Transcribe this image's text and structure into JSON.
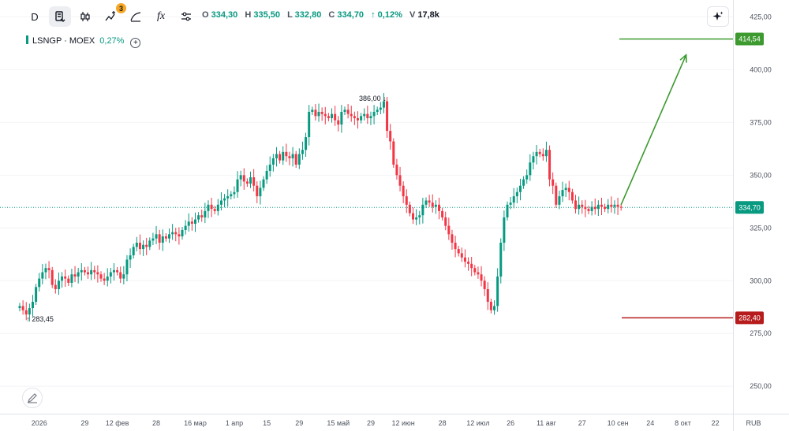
{
  "toolbar": {
    "interval_label": "D",
    "indicators_badge": "3",
    "fx_label": "fx",
    "ohlc": {
      "o_label": "O",
      "o": "334,30",
      "h_label": "H",
      "h": "335,50",
      "l_label": "L",
      "l": "332,80",
      "c_label": "C",
      "c": "334,70",
      "change": "↑ 0,12%",
      "v_label": "V",
      "v": "17,8k"
    }
  },
  "legend": {
    "symbol": "LSNGP · MOEX",
    "change": "0,27%"
  },
  "colors": {
    "up": "#089981",
    "down": "#f23645",
    "target": "#3c9a2f",
    "stop": "#b71c1c",
    "price_line": "#089981"
  },
  "chart_data": {
    "type": "candlestick",
    "y_axis": {
      "min": 237,
      "max": 433,
      "ticks": [
        250,
        275,
        300,
        325,
        350,
        375,
        400,
        425
      ],
      "tick_labels": [
        "250,00",
        "275,00",
        "300,00",
        "325,00",
        "350,00",
        "375,00",
        "400,00",
        "425,00"
      ],
      "currency": "RUB"
    },
    "x_axis": {
      "labels": [
        {
          "text": "2026",
          "i": 6
        },
        {
          "text": "29",
          "i": 20
        },
        {
          "text": "12 фев",
          "i": 30
        },
        {
          "text": "28",
          "i": 42
        },
        {
          "text": "16 мар",
          "i": 54
        },
        {
          "text": "1 апр",
          "i": 66
        },
        {
          "text": "15",
          "i": 76
        },
        {
          "text": "29",
          "i": 86
        },
        {
          "text": "15 май",
          "i": 98
        },
        {
          "text": "29",
          "i": 108
        },
        {
          "text": "12 июн",
          "i": 118
        },
        {
          "text": "28",
          "i": 130
        },
        {
          "text": "12 июл",
          "i": 141
        },
        {
          "text": "26",
          "i": 151
        },
        {
          "text": "11 авг",
          "i": 162
        },
        {
          "text": "27",
          "i": 173
        },
        {
          "text": "10 сен",
          "i": 184
        },
        {
          "text": "24",
          "i": 194
        },
        {
          "text": "8 окт",
          "i": 204
        },
        {
          "text": "22",
          "i": 214
        }
      ]
    },
    "closes": [
      288,
      286,
      284,
      287,
      290,
      297,
      301,
      304,
      306,
      305,
      298,
      296,
      300,
      302,
      301,
      299,
      303,
      302,
      304,
      305,
      304,
      303,
      305,
      304,
      303,
      301,
      300,
      302,
      304,
      305,
      304,
      301,
      303,
      310,
      312,
      316,
      318,
      315,
      317,
      316,
      319,
      320,
      322,
      318,
      321,
      320,
      322,
      323,
      322,
      321,
      324,
      326,
      328,
      327,
      329,
      331,
      330,
      333,
      336,
      334,
      333,
      336,
      338,
      339,
      340,
      341,
      342,
      348,
      350,
      347,
      346,
      349,
      345,
      340,
      344,
      348,
      352,
      355,
      358,
      360,
      357,
      361,
      359,
      358,
      360,
      355,
      360,
      362,
      368,
      380,
      381,
      378,
      380,
      379,
      378,
      377,
      379,
      376,
      374,
      380,
      381,
      379,
      378,
      377,
      376,
      378,
      379,
      377,
      378,
      380,
      381,
      382,
      385,
      371,
      366,
      355,
      350,
      345,
      340,
      336,
      332,
      329,
      330,
      331,
      336,
      338,
      337,
      335,
      336,
      333,
      330,
      326,
      322,
      318,
      315,
      313,
      311,
      309,
      308,
      306,
      304,
      303,
      300,
      296,
      290,
      286,
      288,
      302,
      318,
      330,
      336,
      337,
      340,
      342,
      345,
      348,
      350,
      356,
      359,
      361,
      360,
      359,
      362,
      348,
      345,
      336,
      340,
      343,
      344,
      342,
      338,
      334,
      336,
      335,
      334,
      333,
      335,
      334,
      336,
      335,
      334,
      336,
      335,
      336,
      335,
      334.7
    ],
    "first_point": {
      "label": "283,45",
      "i": 3
    },
    "high_point": {
      "label": "386,00",
      "i": 111
    },
    "last_price": {
      "value": 334.7,
      "label": "334,70"
    },
    "target": {
      "value": 414.54,
      "label": "414,54"
    },
    "stop": {
      "value": 282.4,
      "label": "282,40"
    },
    "arrow": {
      "from_i": 185,
      "from_value": 336,
      "to_i": 205,
      "to_value": 407
    }
  }
}
